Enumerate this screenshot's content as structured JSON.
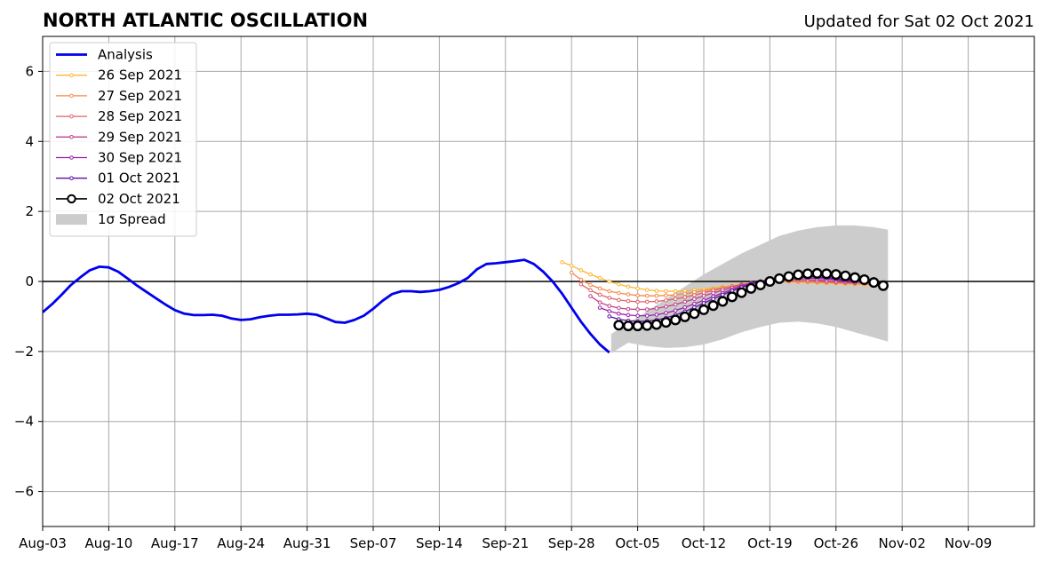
{
  "chart_data": {
    "type": "line",
    "title": "NORTH ATLANTIC OSCILLATION",
    "subtitle": "Updated for Sat 02 Oct 2021",
    "xlabel": "",
    "ylabel": "",
    "x_start": "2021-08-03",
    "x_end": "2021-11-15",
    "xlim_days": [
      0,
      105
    ],
    "ylim": [
      -7,
      7
    ],
    "grid": true,
    "legend_position": "top-left",
    "x_ticks": [
      {
        "day": 0,
        "label": "Aug-03"
      },
      {
        "day": 7,
        "label": "Aug-10"
      },
      {
        "day": 14,
        "label": "Aug-17"
      },
      {
        "day": 21,
        "label": "Aug-24"
      },
      {
        "day": 28,
        "label": "Aug-31"
      },
      {
        "day": 35,
        "label": "Sep-07"
      },
      {
        "day": 42,
        "label": "Sep-14"
      },
      {
        "day": 49,
        "label": "Sep-21"
      },
      {
        "day": 56,
        "label": "Sep-28"
      },
      {
        "day": 63,
        "label": "Oct-05"
      },
      {
        "day": 70,
        "label": "Oct-12"
      },
      {
        "day": 77,
        "label": "Oct-19"
      },
      {
        "day": 84,
        "label": "Oct-26"
      },
      {
        "day": 91,
        "label": "Nov-02"
      },
      {
        "day": 98,
        "label": "Nov-09"
      }
    ],
    "y_ticks": [
      {
        "value": 6,
        "label": "6"
      },
      {
        "value": 4,
        "label": "4"
      },
      {
        "value": 2,
        "label": "2"
      },
      {
        "value": 0,
        "label": "0"
      },
      {
        "value": -2,
        "label": "−2"
      },
      {
        "value": -4,
        "label": "−4"
      },
      {
        "value": -6,
        "label": "−6"
      }
    ],
    "spread": {
      "name": "1σ Spread",
      "color": "#cccccc",
      "x": [
        60.2,
        62,
        64,
        66,
        68,
        70,
        72,
        74,
        76,
        78,
        80,
        82,
        84,
        86,
        88,
        89.5
      ],
      "upper": [
        -1.5,
        -1.2,
        -0.85,
        -0.5,
        -0.15,
        0.2,
        0.5,
        0.8,
        1.05,
        1.3,
        1.45,
        1.55,
        1.6,
        1.6,
        1.55,
        1.48
      ],
      "lower": [
        -2.05,
        -1.75,
        -1.85,
        -1.9,
        -1.88,
        -1.8,
        -1.65,
        -1.45,
        -1.3,
        -1.18,
        -1.15,
        -1.2,
        -1.3,
        -1.45,
        -1.6,
        -1.72
      ]
    },
    "series": [
      {
        "name": "Analysis",
        "color": "#0000ee",
        "kind": "analysis",
        "x": [
          0,
          1,
          2,
          3,
          4,
          5,
          6,
          7,
          8,
          9,
          10,
          11,
          12,
          13,
          14,
          15,
          16,
          17,
          18,
          19,
          20,
          21,
          22,
          23,
          24,
          25,
          26,
          27,
          28,
          29,
          30,
          31,
          32,
          33,
          34,
          35,
          36,
          37,
          38,
          39,
          40,
          41,
          42,
          43,
          44,
          45,
          46,
          47,
          48,
          49,
          50,
          51,
          52,
          53,
          54,
          55,
          56,
          57,
          58,
          59,
          60
        ],
        "values": [
          -0.88,
          -0.65,
          -0.38,
          -0.1,
          0.12,
          0.32,
          0.42,
          0.4,
          0.28,
          0.08,
          -0.12,
          -0.3,
          -0.48,
          -0.66,
          -0.82,
          -0.92,
          -0.96,
          -0.96,
          -0.95,
          -0.98,
          -1.06,
          -1.1,
          -1.08,
          -1.02,
          -0.98,
          -0.95,
          -0.95,
          -0.94,
          -0.92,
          -0.95,
          -1.05,
          -1.16,
          -1.18,
          -1.1,
          -0.98,
          -0.78,
          -0.55,
          -0.36,
          -0.28,
          -0.28,
          -0.3,
          -0.28,
          -0.24,
          -0.16,
          -0.05,
          0.1,
          0.35,
          0.5,
          0.52,
          0.55,
          0.58,
          0.62,
          0.5,
          0.28,
          0.0,
          -0.35,
          -0.75,
          -1.15,
          -1.5,
          -1.8,
          -2.03
        ]
      },
      {
        "name": "26 Sep 2021",
        "color": "#fcb52f",
        "kind": "forecast",
        "x": [
          55,
          56,
          57,
          58,
          59,
          60,
          61,
          62,
          63,
          64,
          65,
          66,
          67,
          68,
          69,
          70,
          71,
          72,
          73,
          74,
          75,
          76,
          77,
          78,
          79,
          80,
          81,
          82,
          83,
          84,
          85,
          86,
          87,
          88
        ],
        "values": [
          0.55,
          0.45,
          0.32,
          0.2,
          0.1,
          0.0,
          -0.08,
          -0.15,
          -0.2,
          -0.24,
          -0.27,
          -0.28,
          -0.28,
          -0.27,
          -0.25,
          -0.22,
          -0.19,
          -0.15,
          -0.12,
          -0.08,
          -0.05,
          -0.03,
          -0.02,
          -0.01,
          -0.01,
          -0.02,
          -0.03,
          -0.04,
          -0.05,
          -0.06,
          -0.07,
          -0.08,
          -0.09,
          -0.1
        ]
      },
      {
        "name": "27 Sep 2021",
        "color": "#f5894b",
        "kind": "forecast",
        "x": [
          56,
          57,
          58,
          59,
          60,
          61,
          62,
          63,
          64,
          65,
          66,
          67,
          68,
          69,
          70,
          71,
          72,
          73,
          74,
          75,
          76,
          77,
          78,
          79,
          80,
          81,
          82,
          83,
          84,
          85,
          86,
          87,
          88
        ],
        "values": [
          0.25,
          0.05,
          -0.1,
          -0.2,
          -0.28,
          -0.33,
          -0.37,
          -0.4,
          -0.41,
          -0.41,
          -0.4,
          -0.38,
          -0.35,
          -0.31,
          -0.27,
          -0.22,
          -0.18,
          -0.14,
          -0.1,
          -0.06,
          -0.03,
          -0.01,
          0.0,
          0.0,
          0.0,
          -0.01,
          -0.02,
          -0.03,
          -0.04,
          -0.05,
          -0.06,
          -0.07,
          -0.08
        ]
      },
      {
        "name": "28 Sep 2021",
        "color": "#e06267",
        "kind": "forecast",
        "x": [
          57,
          58,
          59,
          60,
          61,
          62,
          63,
          64,
          65,
          66,
          67,
          68,
          69,
          70,
          71,
          72,
          73,
          74,
          75,
          76,
          77,
          78,
          79,
          80,
          81,
          82,
          83,
          84,
          85,
          86
        ],
        "values": [
          -0.08,
          -0.25,
          -0.38,
          -0.47,
          -0.53,
          -0.56,
          -0.58,
          -0.58,
          -0.57,
          -0.54,
          -0.5,
          -0.45,
          -0.39,
          -0.32,
          -0.26,
          -0.2,
          -0.14,
          -0.09,
          -0.05,
          -0.02,
          0.0,
          0.01,
          0.02,
          0.02,
          0.01,
          0.0,
          -0.01,
          -0.02,
          -0.03,
          -0.05
        ]
      },
      {
        "name": "29 Sep 2021",
        "color": "#c13f87",
        "kind": "forecast",
        "x": [
          58,
          59,
          60,
          61,
          62,
          63,
          64,
          65,
          66,
          67,
          68,
          69,
          70,
          71,
          72,
          73,
          74,
          75,
          76,
          77,
          78,
          79,
          80,
          81,
          82,
          83,
          84,
          85,
          86
        ],
        "values": [
          -0.42,
          -0.6,
          -0.7,
          -0.76,
          -0.79,
          -0.8,
          -0.8,
          -0.77,
          -0.72,
          -0.66,
          -0.58,
          -0.5,
          -0.41,
          -0.33,
          -0.25,
          -0.18,
          -0.11,
          -0.05,
          0.0,
          0.03,
          0.05,
          0.06,
          0.06,
          0.05,
          0.04,
          0.02,
          0.0,
          -0.02,
          -0.04
        ]
      },
      {
        "name": "30 Sep 2021",
        "color": "#9a1fa5",
        "kind": "forecast",
        "x": [
          59,
          60,
          61,
          62,
          63,
          64,
          65,
          66,
          67,
          68,
          69,
          70,
          71,
          72,
          73,
          74,
          75,
          76,
          77,
          78,
          79,
          80,
          81,
          82,
          83,
          84,
          85,
          86,
          87
        ],
        "values": [
          -0.75,
          -0.85,
          -0.92,
          -0.96,
          -0.98,
          -0.98,
          -0.95,
          -0.9,
          -0.83,
          -0.74,
          -0.64,
          -0.54,
          -0.43,
          -0.33,
          -0.23,
          -0.14,
          -0.06,
          0.0,
          0.05,
          0.08,
          0.1,
          0.11,
          0.1,
          0.09,
          0.07,
          0.05,
          0.02,
          -0.01,
          -0.04
        ]
      },
      {
        "name": "01 Oct 2021",
        "color": "#5a0fa3",
        "kind": "forecast",
        "x": [
          60,
          61,
          62,
          63,
          64,
          65,
          66,
          67,
          68,
          69,
          70,
          71,
          72,
          73,
          74,
          75,
          76,
          77,
          78,
          79,
          80,
          81,
          82,
          83,
          84,
          85,
          86,
          87
        ],
        "values": [
          -1.0,
          -1.08,
          -1.12,
          -1.14,
          -1.13,
          -1.1,
          -1.04,
          -0.96,
          -0.86,
          -0.74,
          -0.62,
          -0.5,
          -0.38,
          -0.27,
          -0.17,
          -0.08,
          0.0,
          0.06,
          0.1,
          0.13,
          0.14,
          0.14,
          0.13,
          0.11,
          0.08,
          0.05,
          0.02,
          -0.02
        ]
      },
      {
        "name": "02 Oct 2021",
        "color": "#000000",
        "kind": "current",
        "x": [
          61,
          62,
          63,
          64,
          65,
          66,
          67,
          68,
          69,
          70,
          71,
          72,
          73,
          74,
          75,
          76,
          77,
          78,
          79,
          80,
          81,
          82,
          83,
          84,
          85,
          86,
          87,
          88,
          89
        ],
        "values": [
          -1.25,
          -1.27,
          -1.27,
          -1.26,
          -1.23,
          -1.17,
          -1.1,
          -1.01,
          -0.92,
          -0.81,
          -0.69,
          -0.57,
          -0.44,
          -0.32,
          -0.2,
          -0.1,
          0.0,
          0.08,
          0.14,
          0.19,
          0.22,
          0.23,
          0.22,
          0.2,
          0.16,
          0.11,
          0.05,
          -0.03,
          -0.12
        ]
      }
    ],
    "legend": [
      {
        "label": "Analysis",
        "style": "analysis",
        "color": "#0000ee"
      },
      {
        "label": "26 Sep 2021",
        "style": "forecast",
        "color": "#fcb52f"
      },
      {
        "label": "27 Sep 2021",
        "style": "forecast",
        "color": "#f5894b"
      },
      {
        "label": "28 Sep 2021",
        "style": "forecast",
        "color": "#e06267"
      },
      {
        "label": "29 Sep 2021",
        "style": "forecast",
        "color": "#c13f87"
      },
      {
        "label": "30 Sep 2021",
        "style": "forecast",
        "color": "#9a1fa5"
      },
      {
        "label": "01 Oct 2021",
        "style": "forecast",
        "color": "#5a0fa3"
      },
      {
        "label": "02 Oct 2021",
        "style": "current",
        "color": "#000000"
      },
      {
        "label": "1σ Spread",
        "style": "spread",
        "color": "#cccccc"
      }
    ]
  }
}
